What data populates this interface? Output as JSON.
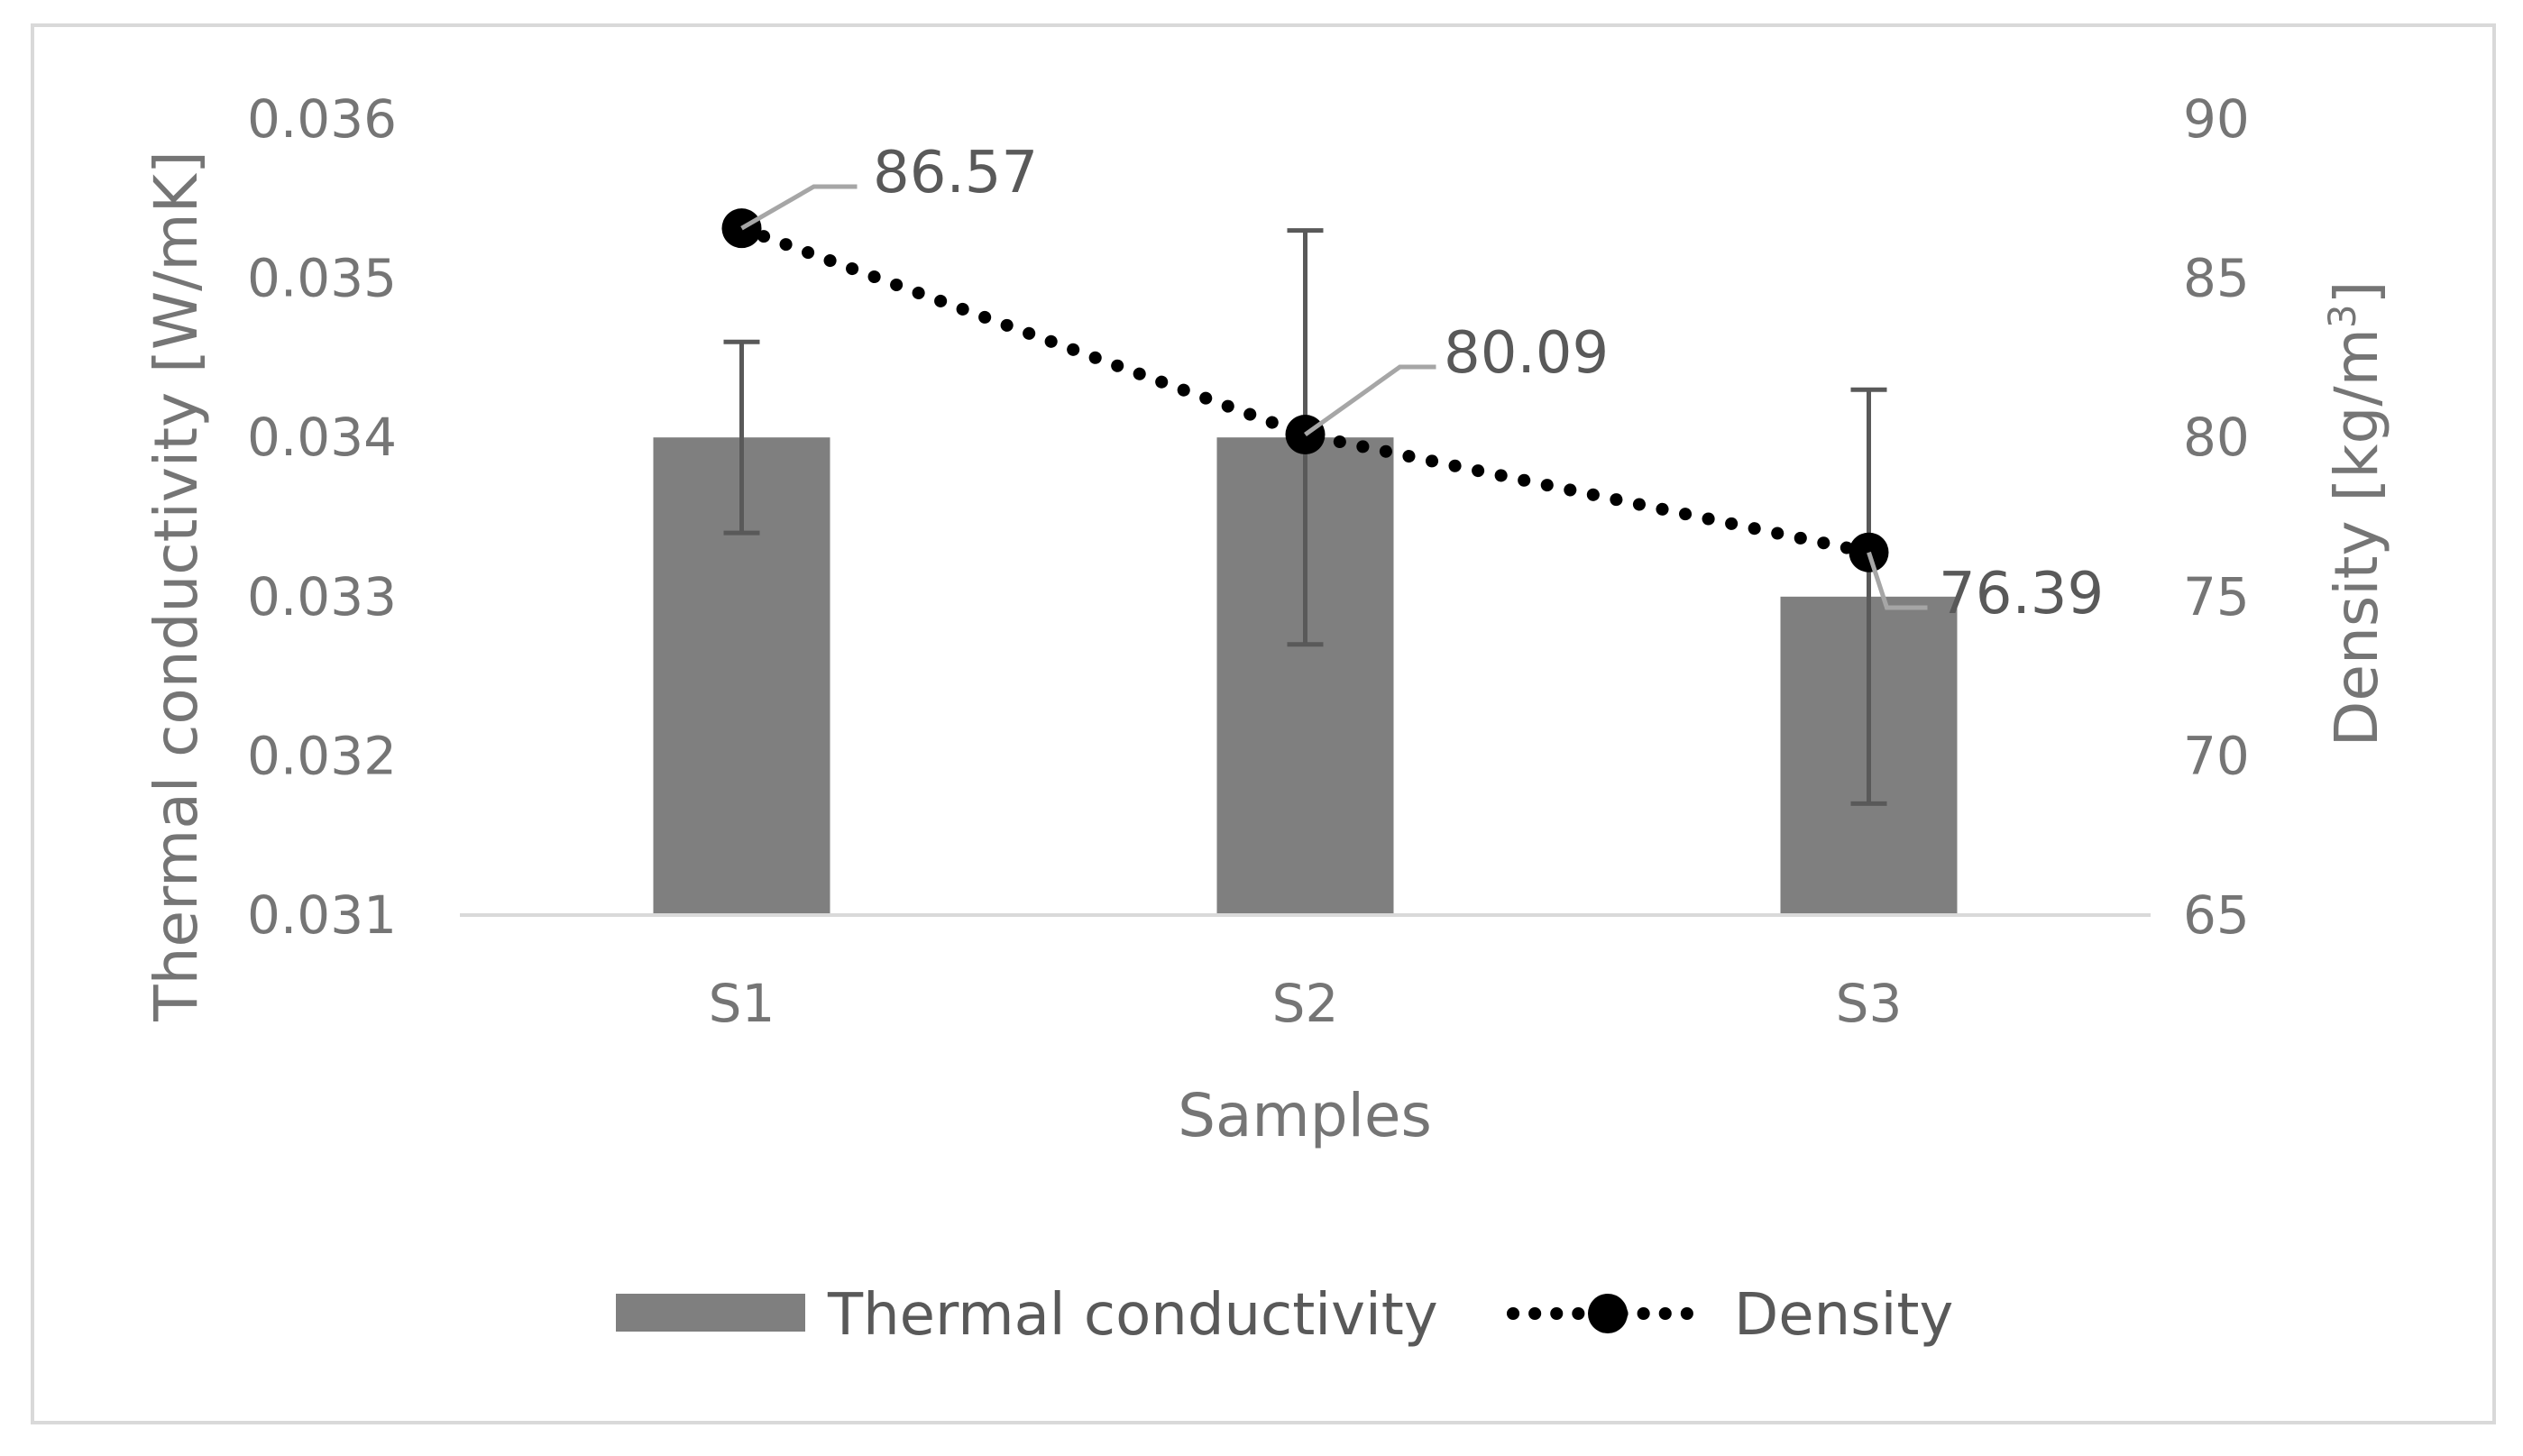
{
  "chart_data": {
    "type": "bar",
    "categories": [
      "S1",
      "S2",
      "S3"
    ],
    "series": [
      {
        "name": "Thermal conductivity",
        "kind": "bar",
        "axis": "left",
        "values": [
          0.034,
          0.034,
          0.033
        ],
        "error_low": [
          0.0334,
          0.0327,
          0.0317
        ],
        "error_high": [
          0.0346,
          0.0353,
          0.0343
        ],
        "color": "#7f7f7f"
      },
      {
        "name": "Density",
        "kind": "line",
        "axis": "right",
        "values": [
          86.57,
          80.09,
          76.39
        ],
        "labels": [
          "86.57",
          "80.09",
          "76.39"
        ],
        "color": "#000000"
      }
    ],
    "xlabel": "Samples",
    "ylabel": "Thermal conductivity [W/mK]",
    "y2label_main": "Density [kg/m",
    "y2label_sup": "3",
    "y2label_end": "]",
    "ylim": [
      0.031,
      0.036
    ],
    "y2lim": [
      65,
      90
    ],
    "yticks": [
      "0.031",
      "0.032",
      "0.033",
      "0.034",
      "0.035",
      "0.036"
    ],
    "y2ticks": [
      "65",
      "70",
      "75",
      "80",
      "85",
      "90"
    ],
    "legend_position": "bottom",
    "grid": false
  }
}
